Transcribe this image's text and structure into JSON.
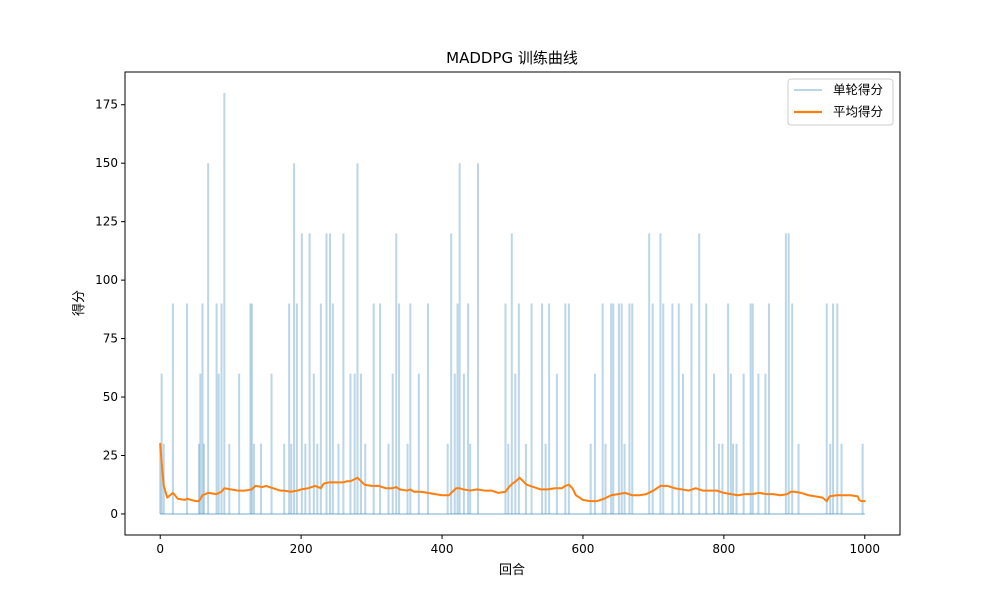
{
  "chart_data": {
    "type": "line",
    "title": "MADDPG 训练曲线",
    "xlabel": "回合",
    "ylabel": "得分",
    "xlim": [
      -50,
      1050
    ],
    "ylim": [
      -9,
      189
    ],
    "xticks": [
      0,
      200,
      400,
      600,
      800,
      1000
    ],
    "yticks": [
      0,
      25,
      50,
      75,
      100,
      125,
      150,
      175
    ],
    "grid": false,
    "legend_position": "top-right",
    "series": [
      {
        "name": "单轮得分",
        "color": "#1f77b4",
        "alpha": 0.3,
        "linewidth": 2,
        "baseline": 0,
        "spikes": [
          [
            0,
            30
          ],
          [
            2,
            60
          ],
          [
            5,
            30
          ],
          [
            18,
            90
          ],
          [
            38,
            90
          ],
          [
            55,
            30
          ],
          [
            57,
            60
          ],
          [
            60,
            90
          ],
          [
            62,
            30
          ],
          [
            68,
            150
          ],
          [
            80,
            90
          ],
          [
            83,
            60
          ],
          [
            87,
            90
          ],
          [
            91,
            180
          ],
          [
            98,
            30
          ],
          [
            112,
            60
          ],
          [
            128,
            90
          ],
          [
            130,
            90
          ],
          [
            133,
            30
          ],
          [
            143,
            30
          ],
          [
            158,
            60
          ],
          [
            176,
            30
          ],
          [
            183,
            90
          ],
          [
            186,
            30
          ],
          [
            190,
            150
          ],
          [
            194,
            90
          ],
          [
            201,
            120
          ],
          [
            206,
            30
          ],
          [
            212,
            120
          ],
          [
            218,
            60
          ],
          [
            223,
            30
          ],
          [
            228,
            90
          ],
          [
            236,
            120
          ],
          [
            241,
            120
          ],
          [
            245,
            90
          ],
          [
            253,
            30
          ],
          [
            260,
            120
          ],
          [
            270,
            60
          ],
          [
            276,
            60
          ],
          [
            280,
            150
          ],
          [
            285,
            60
          ],
          [
            291,
            30
          ],
          [
            303,
            90
          ],
          [
            312,
            90
          ],
          [
            324,
            30
          ],
          [
            330,
            60
          ],
          [
            335,
            120
          ],
          [
            339,
            90
          ],
          [
            351,
            30
          ],
          [
            355,
            90
          ],
          [
            367,
            60
          ],
          [
            380,
            90
          ],
          [
            408,
            30
          ],
          [
            413,
            120
          ],
          [
            418,
            60
          ],
          [
            422,
            90
          ],
          [
            425,
            150
          ],
          [
            431,
            60
          ],
          [
            437,
            90
          ],
          [
            440,
            30
          ],
          [
            451,
            150
          ],
          [
            490,
            90
          ],
          [
            494,
            30
          ],
          [
            499,
            120
          ],
          [
            504,
            60
          ],
          [
            509,
            90
          ],
          [
            519,
            30
          ],
          [
            527,
            90
          ],
          [
            542,
            90
          ],
          [
            547,
            30
          ],
          [
            552,
            90
          ],
          [
            563,
            60
          ],
          [
            575,
            90
          ],
          [
            580,
            90
          ],
          [
            611,
            30
          ],
          [
            617,
            60
          ],
          [
            628,
            90
          ],
          [
            632,
            30
          ],
          [
            640,
            90
          ],
          [
            643,
            90
          ],
          [
            651,
            90
          ],
          [
            655,
            90
          ],
          [
            659,
            30
          ],
          [
            666,
            90
          ],
          [
            670,
            90
          ],
          [
            694,
            120
          ],
          [
            699,
            90
          ],
          [
            710,
            120
          ],
          [
            714,
            90
          ],
          [
            727,
            90
          ],
          [
            736,
            90
          ],
          [
            742,
            60
          ],
          [
            754,
            90
          ],
          [
            765,
            120
          ],
          [
            775,
            90
          ],
          [
            786,
            60
          ],
          [
            793,
            30
          ],
          [
            798,
            30
          ],
          [
            806,
            90
          ],
          [
            810,
            60
          ],
          [
            813,
            30
          ],
          [
            818,
            30
          ],
          [
            828,
            60
          ],
          [
            838,
            90
          ],
          [
            841,
            90
          ],
          [
            849,
            60
          ],
          [
            859,
            60
          ],
          [
            864,
            90
          ],
          [
            888,
            120
          ],
          [
            892,
            120
          ],
          [
            897,
            90
          ],
          [
            906,
            30
          ],
          [
            946,
            90
          ],
          [
            951,
            30
          ],
          [
            955,
            90
          ],
          [
            961,
            90
          ],
          [
            967,
            30
          ],
          [
            997,
            30
          ]
        ]
      },
      {
        "name": "平均得分",
        "color": "#ff7f0e",
        "linewidth": 2,
        "x": [
          0,
          2,
          5,
          10,
          18,
          25,
          35,
          38,
          50,
          55,
          60,
          68,
          80,
          87,
          91,
          100,
          110,
          120,
          130,
          135,
          145,
          150,
          160,
          170,
          175,
          185,
          195,
          200,
          210,
          220,
          228,
          232,
          240,
          250,
          260,
          265,
          270,
          280,
          285,
          290,
          300,
          310,
          320,
          330,
          335,
          340,
          350,
          355,
          360,
          370,
          380,
          390,
          400,
          410,
          413,
          420,
          425,
          430,
          440,
          450,
          460,
          470,
          480,
          490,
          495,
          500,
          505,
          510,
          515,
          520,
          530,
          540,
          550,
          560,
          570,
          575,
          580,
          585,
          590,
          600,
          610,
          620,
          630,
          640,
          650,
          660,
          670,
          680,
          690,
          700,
          710,
          720,
          730,
          740,
          750,
          760,
          770,
          780,
          790,
          800,
          810,
          820,
          830,
          840,
          850,
          860,
          870,
          880,
          890,
          895,
          900,
          910,
          920,
          930,
          940,
          946,
          950,
          960,
          970,
          980,
          990,
          992,
          995,
          1000
        ],
        "values": [
          30,
          22,
          12,
          7,
          9,
          6.5,
          6,
          6.5,
          5.5,
          5.5,
          8,
          9,
          8.5,
          9.5,
          11,
          10.5,
          10,
          10,
          10.5,
          12,
          11.5,
          12,
          11,
          10,
          10,
          9.5,
          10,
          10.5,
          11,
          12,
          11,
          13,
          13.5,
          13.5,
          13.5,
          14,
          14,
          15.5,
          14,
          12.5,
          12,
          12,
          11,
          11,
          11.5,
          10.5,
          10,
          10.5,
          9.5,
          9.5,
          9,
          8.5,
          8,
          8,
          9,
          11,
          11,
          10.5,
          10,
          10.5,
          10,
          10,
          9,
          9.5,
          11.5,
          13,
          14,
          15.5,
          14,
          12.5,
          11.5,
          10.5,
          10.5,
          11,
          11,
          12,
          12.5,
          11,
          8,
          6,
          5.5,
          5.5,
          6.5,
          8,
          8.5,
          9,
          8,
          8,
          8.5,
          10,
          12,
          12,
          11,
          10.5,
          10,
          11,
          10,
          10,
          10,
          9,
          8.5,
          8,
          8.5,
          8.5,
          9,
          8.5,
          8.5,
          8,
          8.5,
          9.5,
          9.5,
          9,
          8,
          7.5,
          7,
          5.5,
          7.5,
          8,
          8,
          8,
          7.5,
          6,
          5.5,
          5.5
        ]
      }
    ]
  }
}
